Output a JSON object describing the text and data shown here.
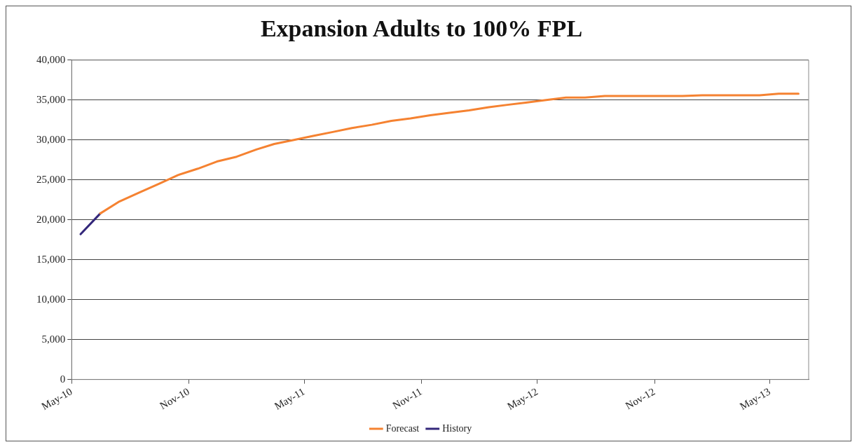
{
  "chart_data": {
    "type": "line",
    "title": "Expansion Adults to 100% FPL",
    "xlim": [
      "2010-05-01",
      "2013-07-01"
    ],
    "xticks": [
      {
        "value": "2010-05-01",
        "label": "May-10"
      },
      {
        "value": "2010-11-01",
        "label": "Nov-10"
      },
      {
        "value": "2011-05-01",
        "label": "May-11"
      },
      {
        "value": "2011-11-01",
        "label": "Nov-11"
      },
      {
        "value": "2012-05-01",
        "label": "May-12"
      },
      {
        "value": "2012-11-01",
        "label": "Nov-12"
      },
      {
        "value": "2013-05-01",
        "label": "May-13"
      }
    ],
    "ylim": [
      0,
      40000
    ],
    "yticks": [
      {
        "value": 0,
        "label": "0"
      },
      {
        "value": 5000,
        "label": "5,000"
      },
      {
        "value": 10000,
        "label": "10,000"
      },
      {
        "value": 15000,
        "label": "15,000"
      },
      {
        "value": 20000,
        "label": "20,000"
      },
      {
        "value": 25000,
        "label": "25,000"
      },
      {
        "value": 30000,
        "label": "30,000"
      },
      {
        "value": 35000,
        "label": "35,000"
      },
      {
        "value": 40000,
        "label": "40,000"
      }
    ],
    "grid": "y",
    "legend": "bottom",
    "marker": "none",
    "line_style": "solid",
    "series": [
      {
        "name": "Forecast",
        "color": "#f58231",
        "x": [
          "2010-06-15",
          "2010-07-15",
          "2010-08-15",
          "2010-09-15",
          "2010-10-15",
          "2010-11-15",
          "2010-12-15",
          "2011-01-15",
          "2011-02-15",
          "2011-03-15",
          "2011-04-15",
          "2011-05-15",
          "2011-06-15",
          "2011-07-15",
          "2011-08-15",
          "2011-09-15",
          "2011-10-15",
          "2011-11-15",
          "2011-12-15",
          "2012-01-15",
          "2012-02-15",
          "2012-03-15",
          "2012-04-15",
          "2012-05-15",
          "2012-06-15",
          "2012-07-15",
          "2012-08-15",
          "2012-09-15",
          "2012-10-15",
          "2012-11-15",
          "2012-12-15",
          "2013-01-15",
          "2013-02-15",
          "2013-03-15",
          "2013-04-15",
          "2013-05-15",
          "2013-06-15"
        ],
        "values": [
          20800,
          22300,
          23400,
          24500,
          25600,
          26400,
          27300,
          27900,
          28800,
          29500,
          30000,
          30500,
          31000,
          31500,
          31900,
          32400,
          32700,
          33100,
          33400,
          33700,
          34100,
          34400,
          34700,
          35000,
          35300,
          35300,
          35500,
          35500,
          35500,
          35500,
          35500,
          35600,
          35600,
          35600,
          35600,
          35800,
          35800
        ]
      },
      {
        "name": "History",
        "color": "#33277a",
        "x": [
          "2010-05-15",
          "2010-06-15"
        ],
        "values": [
          18200,
          20800
        ]
      }
    ]
  }
}
